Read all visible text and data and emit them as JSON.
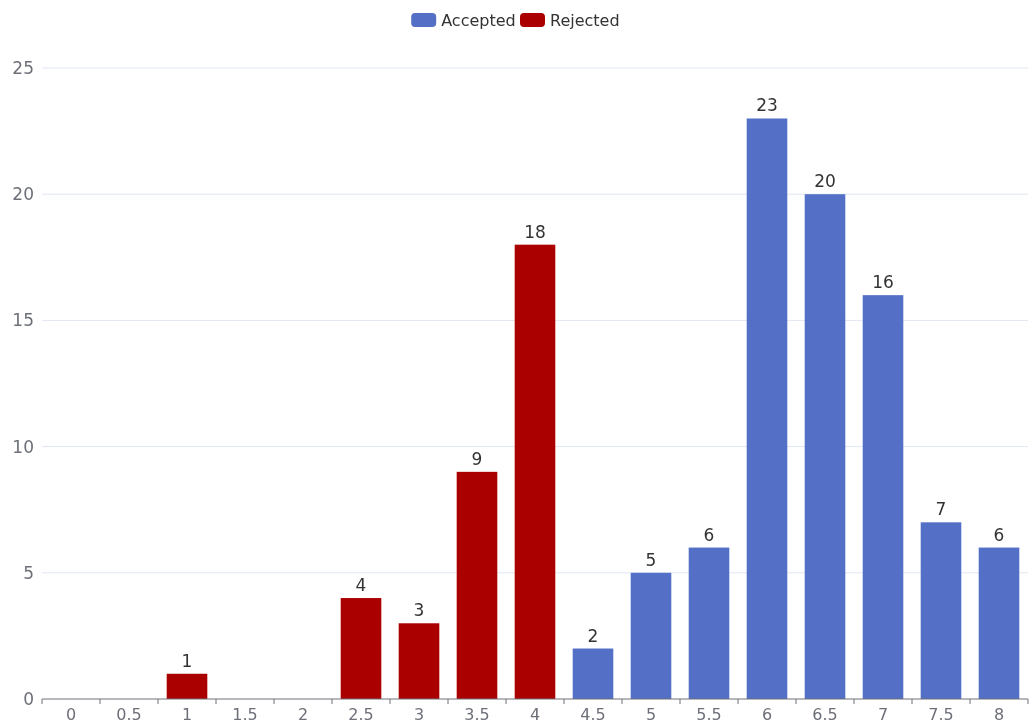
{
  "chart_data": {
    "type": "bar",
    "categories": [
      "0",
      "0.5",
      "1",
      "1.5",
      "2",
      "2.5",
      "3",
      "3.5",
      "4",
      "4.5",
      "5",
      "5.5",
      "6",
      "6.5",
      "7",
      "7.5",
      "8"
    ],
    "series": [
      {
        "name": "Accepted",
        "color": "#5470c6",
        "values": [
          null,
          null,
          null,
          null,
          null,
          null,
          null,
          null,
          null,
          2,
          5,
          6,
          23,
          20,
          16,
          7,
          6
        ]
      },
      {
        "name": "Rejected",
        "color": "#aa0000",
        "values": [
          null,
          null,
          1,
          null,
          null,
          4,
          3,
          9,
          18,
          null,
          null,
          null,
          null,
          null,
          null,
          null,
          null
        ]
      }
    ],
    "ylim": [
      0,
      25
    ],
    "yticks": [
      0,
      5,
      10,
      15,
      20,
      25
    ],
    "grid": "y",
    "legend": "top",
    "data_labels": true
  }
}
